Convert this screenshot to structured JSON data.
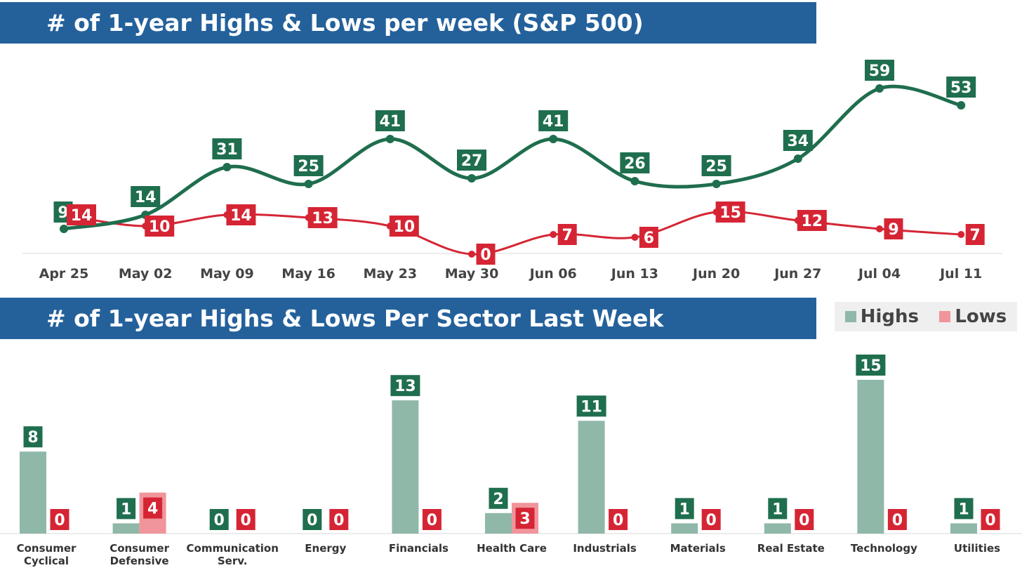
{
  "colors": {
    "banner": "#24619b",
    "highs": "#1f6e4e",
    "lows": "#d52534",
    "highs_bar": "#8fb8a8",
    "lows_bar": "#f0959b"
  },
  "chart_data": [
    {
      "type": "line",
      "title": "# of 1-year Highs & Lows per week (S&P 500)",
      "categories": [
        "Apr 25",
        "May 02",
        "May 09",
        "May 16",
        "May 23",
        "May 30",
        "Jun 06",
        "Jun 13",
        "Jun 20",
        "Jun 27",
        "Jul 04",
        "Jul 11"
      ],
      "series": [
        {
          "name": "Highs",
          "values": [
            9,
            14,
            31,
            25,
            41,
            27,
            41,
            26,
            25,
            34,
            59,
            53
          ]
        },
        {
          "name": "Lows",
          "values": [
            14,
            10,
            14,
            13,
            10,
            0,
            7,
            6,
            15,
            12,
            9,
            7
          ]
        }
      ],
      "ylim": [
        0,
        60
      ],
      "grid": false,
      "data_labels": true
    },
    {
      "type": "bar",
      "title": "# of 1-year Highs & Lows Per Sector Last Week",
      "categories": [
        "Consumer Cyclical",
        "Consumer Defensive",
        "Communication Serv.",
        "Energy",
        "Financials",
        "Health Care",
        "Industrials",
        "Materials",
        "Real Estate",
        "Technology",
        "Utilities"
      ],
      "category_lines": [
        [
          "Consumer",
          "Cyclical"
        ],
        [
          "Consumer",
          "Defensive"
        ],
        [
          "Communication",
          "Serv."
        ],
        [
          "Energy"
        ],
        [
          "Financials"
        ],
        [
          "Health Care"
        ],
        [
          "Industrials"
        ],
        [
          "Materials"
        ],
        [
          "Real Estate"
        ],
        [
          "Technology"
        ],
        [
          "Utilities"
        ]
      ],
      "series": [
        {
          "name": "Highs",
          "values": [
            8,
            1,
            0,
            0,
            13,
            2,
            11,
            1,
            1,
            15,
            1
          ]
        },
        {
          "name": "Lows",
          "values": [
            0,
            4,
            0,
            0,
            0,
            3,
            0,
            0,
            0,
            0,
            0
          ]
        }
      ],
      "ylim": [
        0,
        15
      ],
      "legend": "top-right",
      "grid": false,
      "data_labels": true
    }
  ],
  "legend": {
    "highs": "Highs",
    "lows": "Lows"
  }
}
